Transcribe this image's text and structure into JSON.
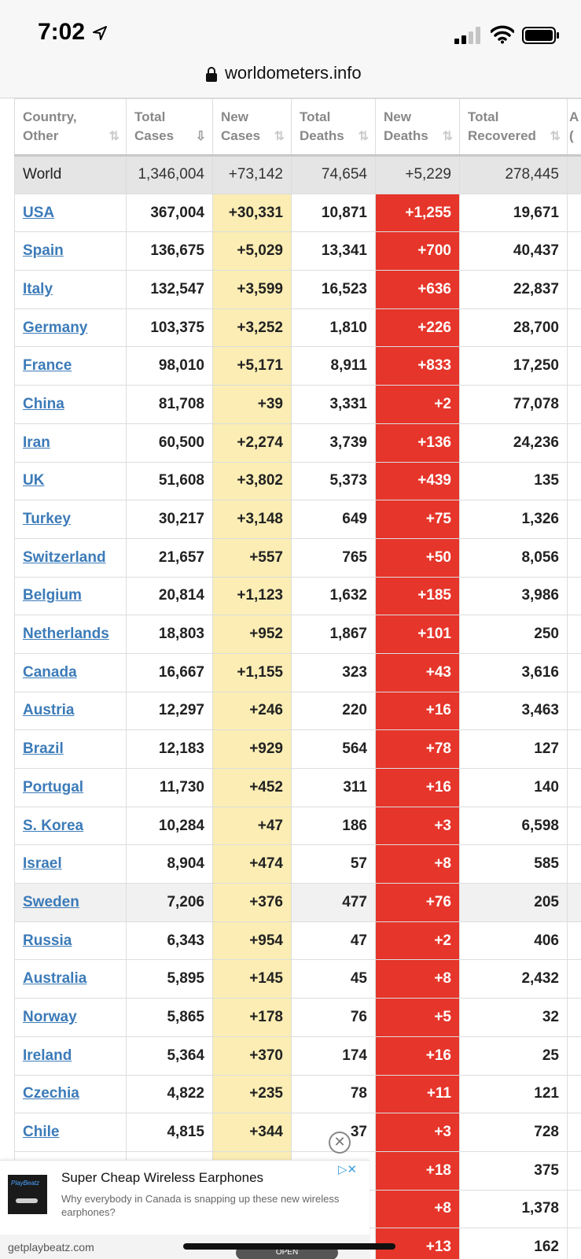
{
  "status": {
    "time": "7:02"
  },
  "url": {
    "domain": "worldometers.info"
  },
  "table": {
    "headers": [
      {
        "line1": "Country,",
        "line2": "Other"
      },
      {
        "line1": "Total",
        "line2": "Cases"
      },
      {
        "line1": "New",
        "line2": "Cases"
      },
      {
        "line1": "Total",
        "line2": "Deaths"
      },
      {
        "line1": "New",
        "line2": "Deaths"
      },
      {
        "line1": "Total",
        "line2": "Recovered"
      },
      {
        "line1": "A",
        "line2": "("
      }
    ],
    "world": {
      "country": "World",
      "total_cases": "1,346,004",
      "new_cases": "+73,142",
      "total_deaths": "74,654",
      "new_deaths": "+5,229",
      "total_recovered": "278,445"
    },
    "rows": [
      {
        "country": "USA",
        "total_cases": "367,004",
        "new_cases": "+30,331",
        "total_deaths": "10,871",
        "new_deaths": "+1,255",
        "total_recovered": "19,671"
      },
      {
        "country": "Spain",
        "total_cases": "136,675",
        "new_cases": "+5,029",
        "total_deaths": "13,341",
        "new_deaths": "+700",
        "total_recovered": "40,437"
      },
      {
        "country": "Italy",
        "total_cases": "132,547",
        "new_cases": "+3,599",
        "total_deaths": "16,523",
        "new_deaths": "+636",
        "total_recovered": "22,837"
      },
      {
        "country": "Germany",
        "total_cases": "103,375",
        "new_cases": "+3,252",
        "total_deaths": "1,810",
        "new_deaths": "+226",
        "total_recovered": "28,700"
      },
      {
        "country": "France",
        "total_cases": "98,010",
        "new_cases": "+5,171",
        "total_deaths": "8,911",
        "new_deaths": "+833",
        "total_recovered": "17,250"
      },
      {
        "country": "China",
        "total_cases": "81,708",
        "new_cases": "+39",
        "total_deaths": "3,331",
        "new_deaths": "+2",
        "total_recovered": "77,078"
      },
      {
        "country": "Iran",
        "total_cases": "60,500",
        "new_cases": "+2,274",
        "total_deaths": "3,739",
        "new_deaths": "+136",
        "total_recovered": "24,236"
      },
      {
        "country": "UK",
        "total_cases": "51,608",
        "new_cases": "+3,802",
        "total_deaths": "5,373",
        "new_deaths": "+439",
        "total_recovered": "135"
      },
      {
        "country": "Turkey",
        "total_cases": "30,217",
        "new_cases": "+3,148",
        "total_deaths": "649",
        "new_deaths": "+75",
        "total_recovered": "1,326"
      },
      {
        "country": "Switzerland",
        "total_cases": "21,657",
        "new_cases": "+557",
        "total_deaths": "765",
        "new_deaths": "+50",
        "total_recovered": "8,056"
      },
      {
        "country": "Belgium",
        "total_cases": "20,814",
        "new_cases": "+1,123",
        "total_deaths": "1,632",
        "new_deaths": "+185",
        "total_recovered": "3,986"
      },
      {
        "country": "Netherlands",
        "total_cases": "18,803",
        "new_cases": "+952",
        "total_deaths": "1,867",
        "new_deaths": "+101",
        "total_recovered": "250"
      },
      {
        "country": "Canada",
        "total_cases": "16,667",
        "new_cases": "+1,155",
        "total_deaths": "323",
        "new_deaths": "+43",
        "total_recovered": "3,616"
      },
      {
        "country": "Austria",
        "total_cases": "12,297",
        "new_cases": "+246",
        "total_deaths": "220",
        "new_deaths": "+16",
        "total_recovered": "3,463"
      },
      {
        "country": "Brazil",
        "total_cases": "12,183",
        "new_cases": "+929",
        "total_deaths": "564",
        "new_deaths": "+78",
        "total_recovered": "127"
      },
      {
        "country": "Portugal",
        "total_cases": "11,730",
        "new_cases": "+452",
        "total_deaths": "311",
        "new_deaths": "+16",
        "total_recovered": "140"
      },
      {
        "country": "S. Korea",
        "total_cases": "10,284",
        "new_cases": "+47",
        "total_deaths": "186",
        "new_deaths": "+3",
        "total_recovered": "6,598"
      },
      {
        "country": "Israel",
        "total_cases": "8,904",
        "new_cases": "+474",
        "total_deaths": "57",
        "new_deaths": "+8",
        "total_recovered": "585"
      },
      {
        "country": "Sweden",
        "total_cases": "7,206",
        "new_cases": "+376",
        "total_deaths": "477",
        "new_deaths": "+76",
        "total_recovered": "205"
      },
      {
        "country": "Russia",
        "total_cases": "6,343",
        "new_cases": "+954",
        "total_deaths": "47",
        "new_deaths": "+2",
        "total_recovered": "406"
      },
      {
        "country": "Australia",
        "total_cases": "5,895",
        "new_cases": "+145",
        "total_deaths": "45",
        "new_deaths": "+8",
        "total_recovered": "2,432"
      },
      {
        "country": "Norway",
        "total_cases": "5,865",
        "new_cases": "+178",
        "total_deaths": "76",
        "new_deaths": "+5",
        "total_recovered": "32"
      },
      {
        "country": "Ireland",
        "total_cases": "5,364",
        "new_cases": "+370",
        "total_deaths": "174",
        "new_deaths": "+16",
        "total_recovered": "25"
      },
      {
        "country": "Czechia",
        "total_cases": "4,822",
        "new_cases": "+235",
        "total_deaths": "78",
        "new_deaths": "+11",
        "total_recovered": "121"
      },
      {
        "country": "Chile",
        "total_cases": "4,815",
        "new_cases": "+344",
        "total_deaths": "37",
        "new_deaths": "+3",
        "total_recovered": "728"
      },
      {
        "country": "",
        "total_cases": "",
        "new_cases": "",
        "total_deaths": "",
        "new_deaths": "+18",
        "total_recovered": "375"
      },
      {
        "country": "",
        "total_cases": "",
        "new_cases": "",
        "total_deaths": "",
        "new_deaths": "+8",
        "total_recovered": "1,378"
      },
      {
        "country": "",
        "total_cases": "",
        "new_cases": "",
        "total_deaths": "",
        "new_deaths": "+13",
        "total_recovered": "162"
      }
    ]
  },
  "ad": {
    "title": "Super Cheap Wireless Earphones",
    "description": "Why everybody in Canada is snapping up these new wireless earphones?",
    "domain": "getplaybeatz.com",
    "logo_text": "PlayBeatz",
    "open_label": "OPEN",
    "close_icon": "close-icon",
    "choices_icon": "ad-choices-icon"
  },
  "colors": {
    "new_cases_bg": "#fbedb4",
    "new_deaths_bg": "#e6352a",
    "link": "#3c7bb8",
    "world_bg": "#e5e5e5"
  }
}
